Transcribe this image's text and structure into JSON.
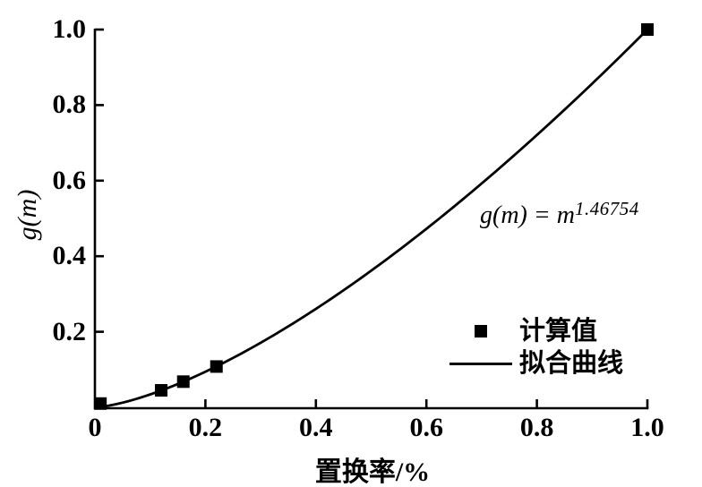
{
  "figure": {
    "background_color": "#ffffff",
    "ink_color": "#000000"
  },
  "chart_data": {
    "type": "line",
    "title": "",
    "xlabel": "置换率/%",
    "ylabel": "g(m)",
    "xlim": [
      0,
      1.0
    ],
    "ylim": [
      0,
      1.0
    ],
    "grid": false,
    "x_ticks": [
      {
        "value": 0,
        "label": "0"
      },
      {
        "value": 0.2,
        "label": "0.2"
      },
      {
        "value": 0.4,
        "label": "0.4"
      },
      {
        "value": 0.6,
        "label": "0.6"
      },
      {
        "value": 0.8,
        "label": "0.8"
      },
      {
        "value": 1.0,
        "label": "1.0"
      }
    ],
    "y_ticks": [
      {
        "value": 0.2,
        "label": "0.2"
      },
      {
        "value": 0.4,
        "label": "0.4"
      },
      {
        "value": 0.6,
        "label": "0.6"
      },
      {
        "value": 0.8,
        "label": "0.8"
      },
      {
        "value": 1.0,
        "label": "1.0"
      }
    ],
    "series": [
      {
        "name": "计算值",
        "type": "scatter",
        "marker": "filled-square",
        "marker_size": 14,
        "color": "#000000",
        "points": [
          {
            "x": 0.01,
            "y": 0.01
          },
          {
            "x": 0.12,
            "y": 0.045
          },
          {
            "x": 0.16,
            "y": 0.068
          },
          {
            "x": 0.22,
            "y": 0.108
          },
          {
            "x": 1.0,
            "y": 1.0
          }
        ]
      },
      {
        "name": "拟合曲线",
        "type": "line",
        "color": "#000000",
        "equation_text": "g(m) = m^1.46754",
        "exponent": 1.46754,
        "x_range": [
          0,
          1.0
        ]
      }
    ],
    "annotation": {
      "base": "g(m) = m",
      "exponent": "1.46754",
      "text": "g(m) = m^1.46754"
    },
    "legend": {
      "position": "inside-bottom-right",
      "items": [
        {
          "label": "计算值",
          "swatch": "square-marker"
        },
        {
          "label": "拟合曲线",
          "swatch": "line"
        }
      ]
    }
  }
}
